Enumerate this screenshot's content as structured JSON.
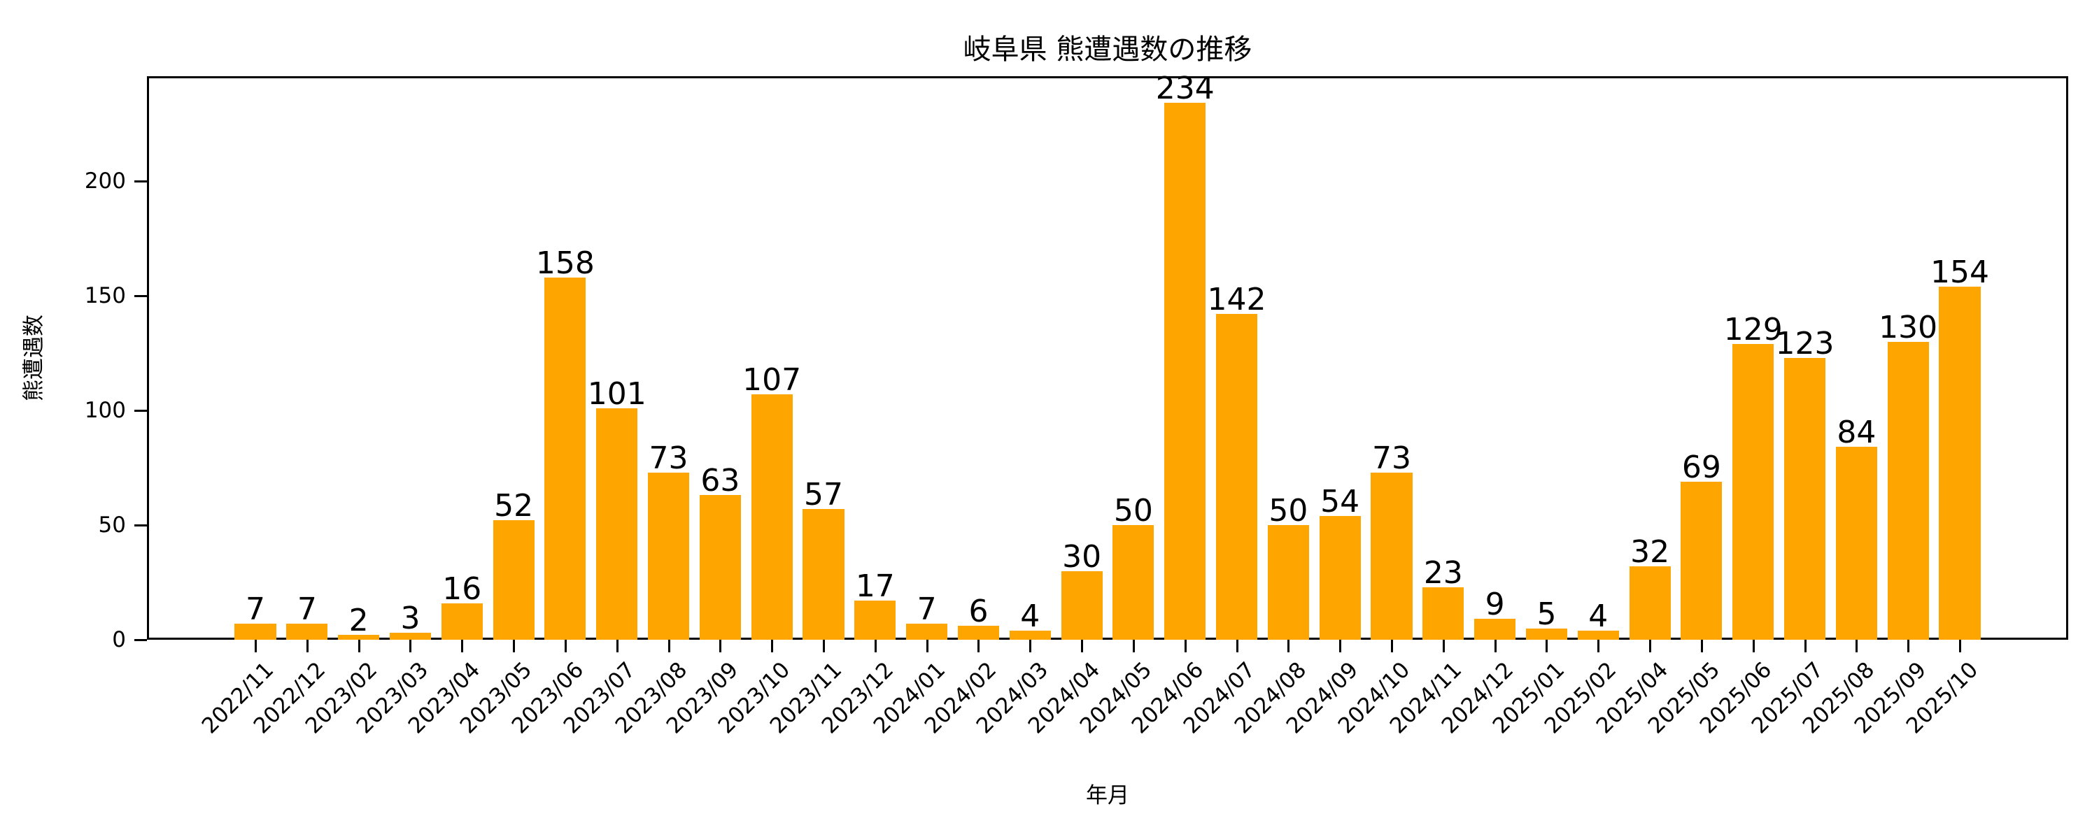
{
  "chart_data": {
    "type": "bar",
    "title": "岐阜県 熊遭遇数の推移",
    "xlabel": "年月",
    "ylabel": "熊遭遇数",
    "ylim": [
      0,
      245
    ],
    "yticks": [
      0,
      50,
      100,
      150,
      200
    ],
    "grid": false,
    "legend": null,
    "bar_color": "#FFA500",
    "categories": [
      "2022/11",
      "2022/12",
      "2023/02",
      "2023/03",
      "2023/04",
      "2023/05",
      "2023/06",
      "2023/07",
      "2023/08",
      "2023/09",
      "2023/10",
      "2023/11",
      "2023/12",
      "2024/01",
      "2024/02",
      "2024/03",
      "2024/04",
      "2024/05",
      "2024/06",
      "2024/07",
      "2024/08",
      "2024/09",
      "2024/10",
      "2024/11",
      "2024/12",
      "2025/01",
      "2025/02",
      "2025/04",
      "2025/05",
      "2025/06",
      "2025/07",
      "2025/08",
      "2025/09",
      "2025/10"
    ],
    "values": [
      7,
      7,
      2,
      3,
      16,
      52,
      158,
      101,
      73,
      63,
      107,
      57,
      17,
      7,
      6,
      4,
      30,
      50,
      234,
      142,
      50,
      54,
      73,
      23,
      9,
      5,
      4,
      32,
      69,
      129,
      123,
      84,
      130,
      154
    ]
  }
}
